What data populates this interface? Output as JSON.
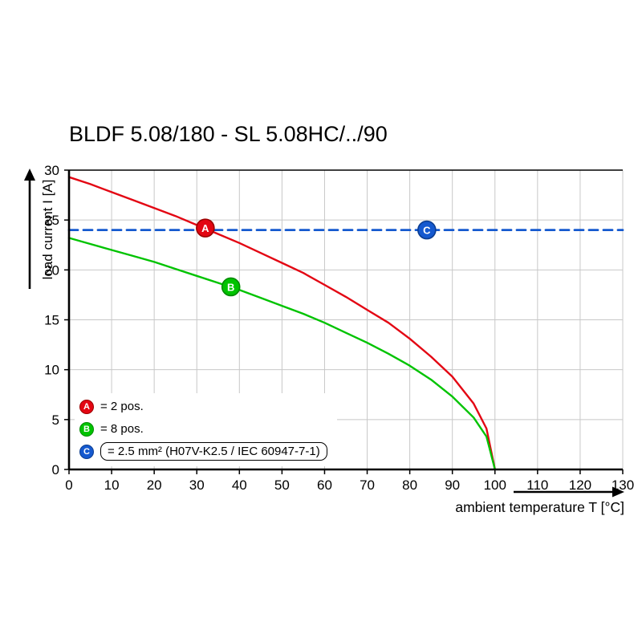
{
  "title": "BLDF 5.08/180 - SL 5.08HC/../90",
  "chart_data": {
    "type": "line",
    "title": "BLDF 5.08/180 - SL 5.08HC/../90",
    "xlabel": "ambient temperature T [°C]",
    "ylabel": "load current I [A]",
    "xlim": [
      0,
      130
    ],
    "ylim": [
      0,
      30
    ],
    "xticks": [
      0,
      10,
      20,
      30,
      40,
      50,
      60,
      70,
      80,
      90,
      100,
      110,
      120,
      130
    ],
    "yticks": [
      0,
      5,
      10,
      15,
      20,
      25,
      30
    ],
    "grid": true,
    "legend_position": "inside bottom-left",
    "colors": {
      "red": "#e30613",
      "green": "#00c300",
      "blue": "#1559cf",
      "grid": "#c8c8c8",
      "axis": "#000000"
    },
    "series": [
      {
        "name": "A",
        "label": "= 2 pos.",
        "color": "#e30613",
        "style": "solid",
        "x": [
          0,
          5,
          10,
          15,
          20,
          25,
          30,
          35,
          40,
          45,
          50,
          55,
          60,
          65,
          70,
          75,
          80,
          85,
          90,
          95,
          98,
          100
        ],
        "y": [
          29.3,
          28.6,
          27.8,
          27.0,
          26.2,
          25.4,
          24.5,
          23.6,
          22.7,
          21.7,
          20.7,
          19.7,
          18.5,
          17.3,
          16.0,
          14.7,
          13.1,
          11.3,
          9.3,
          6.6,
          4.1,
          0
        ]
      },
      {
        "name": "B",
        "label": "= 8 pos.",
        "color": "#00c300",
        "style": "solid",
        "x": [
          0,
          5,
          10,
          15,
          20,
          25,
          30,
          35,
          40,
          45,
          50,
          55,
          60,
          65,
          70,
          75,
          80,
          85,
          90,
          95,
          98,
          100
        ],
        "y": [
          23.2,
          22.6,
          22.0,
          21.4,
          20.8,
          20.1,
          19.4,
          18.7,
          18.0,
          17.2,
          16.4,
          15.6,
          14.7,
          13.7,
          12.7,
          11.6,
          10.4,
          9.0,
          7.3,
          5.2,
          3.3,
          0
        ]
      },
      {
        "name": "C",
        "label": "= 2.5 mm² (H07V-K2.5 / IEC 60947-7-1)",
        "color": "#1559cf",
        "style": "dashed",
        "x": [
          0,
          130
        ],
        "y": [
          24,
          24
        ]
      }
    ],
    "markers": [
      {
        "letter": "A",
        "x": 32,
        "y": 24.2,
        "color": "#e30613",
        "stroke": "#9b0000"
      },
      {
        "letter": "B",
        "x": 38,
        "y": 18.3,
        "color": "#00c300",
        "stroke": "#008a00"
      },
      {
        "letter": "C",
        "x": 84,
        "y": 24.0,
        "color": "#1559cf",
        "stroke": "#0b3d91"
      }
    ],
    "legend": [
      {
        "letter": "A",
        "color": "#e30613",
        "stroke": "#9b0000",
        "text": "= 2 pos.",
        "boxed": false
      },
      {
        "letter": "B",
        "color": "#00c300",
        "stroke": "#008a00",
        "text": "= 8 pos.",
        "boxed": false
      },
      {
        "letter": "C",
        "color": "#1559cf",
        "stroke": "#0b3d91",
        "text": "= 2.5 mm² (H07V-K2.5 / IEC 60947-7-1)",
        "boxed": true
      }
    ]
  }
}
